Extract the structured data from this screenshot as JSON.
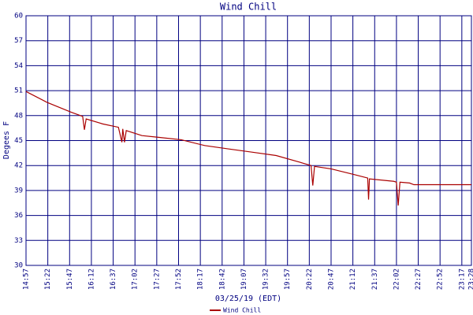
{
  "chart_data": {
    "type": "line",
    "title": "Wind Chill",
    "x_label": "03/25/19 (EDT)",
    "y_label": "Degees F",
    "x": [
      897,
      921,
      949,
      962,
      964,
      966,
      985,
      1003,
      1007,
      1008,
      1010,
      1012,
      1030,
      1048,
      1075,
      1102,
      1129,
      1157,
      1184,
      1211,
      1224,
      1226,
      1228,
      1247,
      1274,
      1289,
      1290,
      1291,
      1319,
      1322,
      1324,
      1326,
      1337,
      1342,
      1408
    ],
    "series": [
      {
        "name": "Wind Chill",
        "color": "#aa0000",
        "values": [
          50.9,
          49.6,
          48.4,
          47.9,
          46.3,
          47.6,
          47.0,
          46.6,
          44.8,
          46.4,
          44.8,
          46.2,
          45.6,
          45.4,
          45.1,
          44.4,
          44.0,
          43.6,
          43.2,
          42.4,
          42.0,
          39.6,
          41.9,
          41.6,
          40.9,
          40.5,
          37.9,
          40.4,
          40.1,
          40.0,
          37.2,
          40.0,
          39.9,
          39.7,
          39.7
        ]
      }
    ],
    "xlim": [
      897,
      1408
    ],
    "xticks": [
      {
        "value": 897,
        "label": "14:57"
      },
      {
        "value": 922,
        "label": "15:22"
      },
      {
        "value": 947,
        "label": "15:47"
      },
      {
        "value": 972,
        "label": "16:12"
      },
      {
        "value": 997,
        "label": "16:37"
      },
      {
        "value": 1022,
        "label": "17:02"
      },
      {
        "value": 1047,
        "label": "17:27"
      },
      {
        "value": 1072,
        "label": "17:52"
      },
      {
        "value": 1097,
        "label": "18:17"
      },
      {
        "value": 1122,
        "label": "18:42"
      },
      {
        "value": 1147,
        "label": "19:07"
      },
      {
        "value": 1172,
        "label": "19:32"
      },
      {
        "value": 1197,
        "label": "19:57"
      },
      {
        "value": 1222,
        "label": "20:22"
      },
      {
        "value": 1247,
        "label": "20:47"
      },
      {
        "value": 1272,
        "label": "21:12"
      },
      {
        "value": 1297,
        "label": "21:37"
      },
      {
        "value": 1322,
        "label": "22:02"
      },
      {
        "value": 1347,
        "label": "22:27"
      },
      {
        "value": 1372,
        "label": "22:52"
      },
      {
        "value": 1397,
        "label": "23:17"
      },
      {
        "value": 1408,
        "label": "23:28"
      }
    ],
    "ylim": [
      30,
      60
    ],
    "yticks": [
      30,
      33,
      36,
      39,
      42,
      45,
      48,
      51,
      54,
      57,
      60
    ],
    "grid": true
  }
}
